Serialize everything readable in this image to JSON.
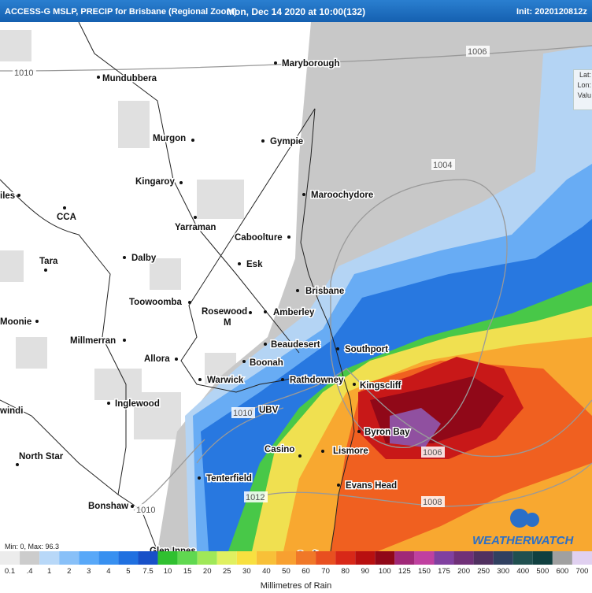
{
  "header": {
    "title": "ACCESS-G MSLP, PRECIP for Brisbane (Regional Zoom)",
    "valid": "Mon, Dec 14 2020 at 10:00(132)",
    "init": "Init: 2020120812z"
  },
  "info_box": [
    "Lat:",
    "Lon:",
    "Valu"
  ],
  "places": [
    "Maryborough",
    "Mundubbera",
    "Gympie",
    "Murgon",
    "Maroochydore",
    "Kingaroy",
    "iles",
    "CCA",
    "Yarraman",
    "Caboolture",
    "Tara",
    "Dalby",
    "Esk",
    "Brisbane",
    "Toowoomba",
    "Rosewood",
    "M",
    "Amberley",
    "Moonie",
    "Millmerran",
    "Beaudesert",
    "Southport",
    "Allora",
    "Boonah",
    "Warwick",
    "Rathdowney",
    "Kingscliff",
    "Inglewood",
    "windi",
    "UBV",
    "Byron Bay",
    "Casino",
    "Lismore",
    "North Star",
    "Tenterfield",
    "Evans Head",
    "Bonshaw",
    "Glen Innes",
    "Grafton"
  ],
  "isobar_labels": [
    "1010",
    "1006",
    "1004",
    "1006",
    "1008",
    "1010",
    "1012",
    "1010"
  ],
  "min_max": "Min: 0, Max: 96.3",
  "watermark": "WEATHERWATCH",
  "legend": {
    "title": "Millimetres of Rain",
    "labels": [
      "0.1",
      ".4",
      "1",
      "2",
      "3",
      "4",
      "5",
      "7.5",
      "10",
      "15",
      "20",
      "25",
      "30",
      "40",
      "50",
      "60",
      "70",
      "80",
      "90",
      "100",
      "125",
      "150",
      "175",
      "200",
      "250",
      "300",
      "400",
      "500",
      "600",
      "700"
    ]
  }
}
